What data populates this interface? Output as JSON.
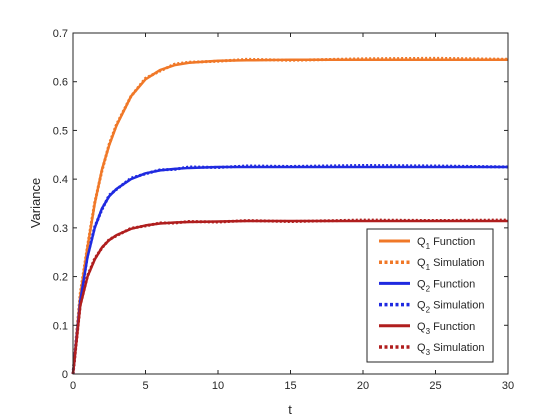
{
  "chart_data": {
    "type": "line",
    "title": "",
    "xlabel": "t",
    "ylabel": "Variance",
    "xlim": [
      0,
      30
    ],
    "ylim": [
      0,
      0.7
    ],
    "xticks": [
      0,
      5,
      10,
      15,
      20,
      25,
      30
    ],
    "yticks": [
      0,
      0.1,
      0.2,
      0.3,
      0.4,
      0.5,
      0.6,
      0.7
    ],
    "grid": false,
    "legend_position": "bottom-right",
    "series": [
      {
        "name_base": "Q",
        "name_sub": "1",
        "name_suffix": " Function",
        "style": "solid",
        "color": "#f07828",
        "group": 1,
        "x": [
          0,
          0.5,
          1,
          1.5,
          2,
          2.5,
          3,
          4,
          5,
          6,
          7,
          8,
          10,
          12,
          15,
          20,
          25,
          30
        ],
        "values": [
          0,
          0.16,
          0.26,
          0.35,
          0.42,
          0.47,
          0.51,
          0.57,
          0.605,
          0.624,
          0.634,
          0.639,
          0.643,
          0.644,
          0.645,
          0.645,
          0.645,
          0.645
        ]
      },
      {
        "name_base": "Q",
        "name_sub": "1",
        "name_suffix": " Simulation",
        "style": "dotted",
        "color": "#f07828",
        "group": 1,
        "x": [
          0,
          0.5,
          1,
          1.5,
          2,
          2.5,
          3,
          4,
          5,
          6,
          7,
          8,
          10,
          12,
          15,
          20,
          25,
          30
        ],
        "values": [
          0,
          0.165,
          0.262,
          0.352,
          0.418,
          0.472,
          0.512,
          0.57,
          0.607,
          0.622,
          0.636,
          0.64,
          0.642,
          0.646,
          0.644,
          0.647,
          0.648,
          0.646
        ]
      },
      {
        "name_base": "Q",
        "name_sub": "2",
        "name_suffix": " Function",
        "style": "solid",
        "color": "#1f2ae0",
        "group": 2,
        "x": [
          0,
          0.5,
          1,
          1.5,
          2,
          2.5,
          3,
          4,
          5,
          6,
          7,
          8,
          10,
          12,
          15,
          20,
          25,
          30
        ],
        "values": [
          0,
          0.15,
          0.24,
          0.3,
          0.34,
          0.365,
          0.38,
          0.4,
          0.412,
          0.418,
          0.421,
          0.423,
          0.425,
          0.425,
          0.425,
          0.425,
          0.425,
          0.425
        ]
      },
      {
        "name_base": "Q",
        "name_sub": "2",
        "name_suffix": " Simulation",
        "style": "dotted",
        "color": "#1f2ae0",
        "group": 2,
        "x": [
          0,
          0.5,
          1,
          1.5,
          2,
          2.5,
          3,
          4,
          5,
          6,
          7,
          8,
          10,
          12,
          15,
          20,
          25,
          30
        ],
        "values": [
          0,
          0.152,
          0.243,
          0.302,
          0.338,
          0.367,
          0.379,
          0.402,
          0.411,
          0.419,
          0.42,
          0.425,
          0.424,
          0.427,
          0.426,
          0.428,
          0.427,
          0.425
        ]
      },
      {
        "name_base": "Q",
        "name_sub": "3",
        "name_suffix": " Function",
        "style": "solid",
        "color": "#b01e1e",
        "group": 3,
        "x": [
          0,
          0.5,
          1,
          1.5,
          2,
          2.5,
          3,
          4,
          5,
          6,
          7,
          8,
          10,
          12,
          15,
          20,
          25,
          30
        ],
        "values": [
          0,
          0.14,
          0.2,
          0.235,
          0.26,
          0.275,
          0.285,
          0.298,
          0.305,
          0.309,
          0.311,
          0.312,
          0.313,
          0.314,
          0.314,
          0.314,
          0.314,
          0.314
        ]
      },
      {
        "name_base": "Q",
        "name_sub": "3",
        "name_suffix": " Simulation",
        "style": "dotted",
        "color": "#b01e1e",
        "group": 3,
        "x": [
          0,
          0.5,
          1,
          1.5,
          2,
          2.5,
          3,
          4,
          5,
          6,
          7,
          8,
          10,
          12,
          15,
          20,
          25,
          30
        ],
        "values": [
          0,
          0.142,
          0.201,
          0.237,
          0.259,
          0.276,
          0.284,
          0.299,
          0.304,
          0.31,
          0.31,
          0.313,
          0.312,
          0.315,
          0.313,
          0.316,
          0.315,
          0.316
        ]
      }
    ]
  }
}
